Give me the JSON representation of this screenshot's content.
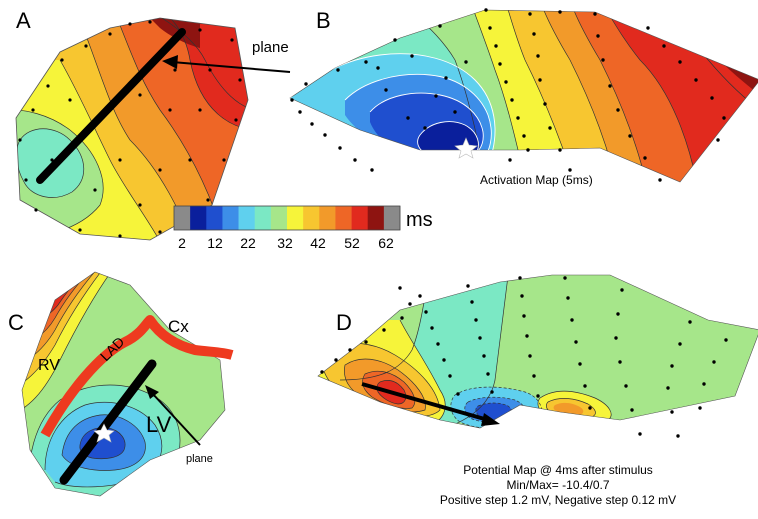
{
  "panels": {
    "a": {
      "letter": "A",
      "plane_label": "plane"
    },
    "b": {
      "letter": "B",
      "caption": "Activation Map (5ms)"
    },
    "c": {
      "letter": "C",
      "labels": {
        "cx": "Cx",
        "rv": "RV",
        "lad": "LAD",
        "lv": "LV",
        "plane": "plane"
      }
    },
    "d": {
      "letter": "D",
      "caption_lines": [
        "Potential Map @ 4ms after stimulus",
        "Min/Max= -10.4/0.7",
        "Positive step  1.2 mV, Negative step 0.12 mV"
      ]
    }
  },
  "colorbar": {
    "unit": "ms",
    "tick_labels": [
      "2",
      "12",
      "22",
      "32",
      "42",
      "52",
      "62"
    ],
    "colors": [
      "#8a8a8a",
      "#0a1f9c",
      "#1f4fcf",
      "#3d8ee8",
      "#5fd0ee",
      "#7be8c4",
      "#a6e68a",
      "#f6f43a",
      "#f7c630",
      "#f29a2a",
      "#ee6626",
      "#e12a1e",
      "#8e1411",
      "#8a8a8a"
    ]
  },
  "palette": {
    "c0": "#0a1f9c",
    "c1": "#1f4fcf",
    "c2": "#3d8ee8",
    "c3": "#5fd0ee",
    "c4": "#7be8c4",
    "c5": "#a6e68a",
    "c6": "#f6f43a",
    "c7": "#f7c630",
    "c8": "#f29a2a",
    "c9": "#ee6626",
    "c10": "#e12a1e",
    "c11": "#8e1411",
    "lad": "#ee3a1f"
  }
}
